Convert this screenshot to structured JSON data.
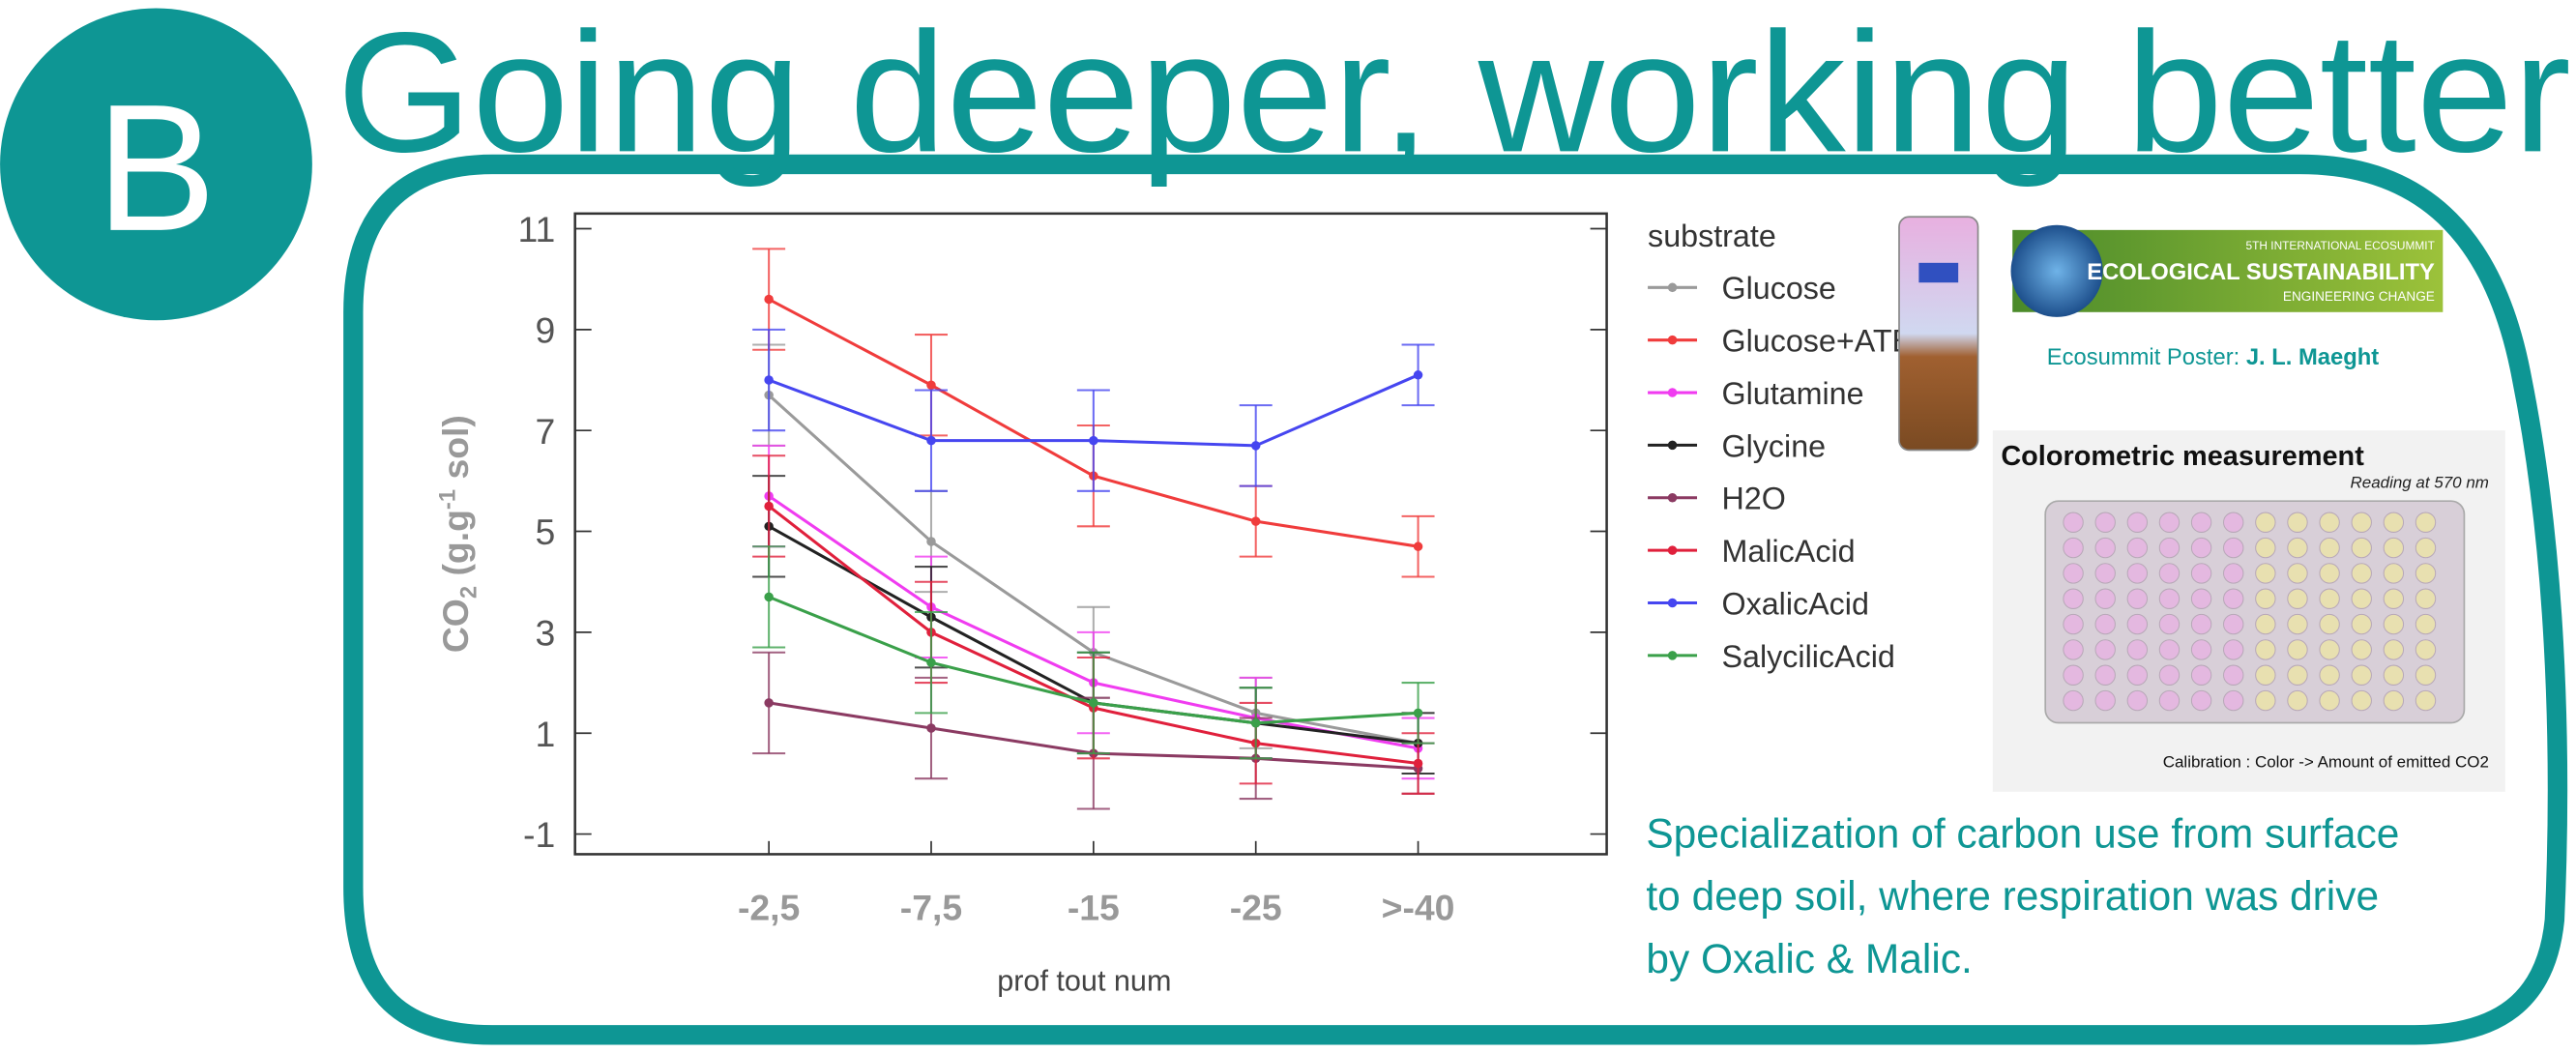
{
  "badge": "B",
  "title": "Going deeper, working better",
  "chart_data": {
    "type": "line",
    "categories": [
      "-2,5",
      "-7,5",
      "-15",
      "-25",
      ">-40"
    ],
    "xlabel": "prof tout num",
    "ylabel": {
      "main": "CO",
      "sub": "2",
      "mid": " (g.g",
      "sup": "-1",
      "end": " sol)"
    },
    "legend_title": "substrate",
    "ylim": [
      -1.4,
      11.3
    ],
    "yticks": [
      -1,
      1,
      3,
      5,
      7,
      9,
      11
    ],
    "series": [
      {
        "name": "Glucose",
        "color": "#9a9a9a",
        "values": [
          7.7,
          4.8,
          2.6,
          1.4,
          0.8
        ],
        "errors": [
          1.0,
          1.0,
          0.9,
          0.7,
          0.6
        ]
      },
      {
        "name": "Glucose+ATB",
        "color": "#f03c3c",
        "values": [
          9.6,
          7.9,
          6.1,
          5.2,
          4.7
        ],
        "errors": [
          1.0,
          1.0,
          1.0,
          0.7,
          0.6
        ]
      },
      {
        "name": "Glutamine",
        "color": "#f03cf0",
        "values": [
          5.7,
          3.5,
          2.0,
          1.3,
          0.7
        ],
        "errors": [
          1.0,
          1.0,
          1.0,
          0.8,
          0.6
        ]
      },
      {
        "name": "Glycine",
        "color": "#222222",
        "values": [
          5.1,
          3.3,
          1.6,
          1.2,
          0.8
        ],
        "errors": [
          1.0,
          1.0,
          1.0,
          0.7,
          0.6
        ]
      },
      {
        "name": "H2O",
        "color": "#8b3a62",
        "values": [
          1.6,
          1.1,
          0.6,
          0.5,
          0.3
        ],
        "errors": [
          1.0,
          1.0,
          1.1,
          0.8,
          0.5
        ]
      },
      {
        "name": "MalicAcid",
        "color": "#e0203c",
        "values": [
          5.5,
          3.0,
          1.5,
          0.8,
          0.4
        ],
        "errors": [
          1.0,
          1.0,
          1.0,
          0.8,
          0.6
        ]
      },
      {
        "name": "OxalicAcid",
        "color": "#4646f0",
        "values": [
          8.0,
          6.8,
          6.8,
          6.7,
          8.1
        ],
        "errors": [
          1.0,
          1.0,
          1.0,
          0.8,
          0.6
        ]
      },
      {
        "name": "SalycilicAcid",
        "color": "#3aa04a",
        "values": [
          3.7,
          2.4,
          1.6,
          1.2,
          1.4
        ],
        "errors": [
          1.0,
          1.0,
          1.0,
          0.7,
          0.6
        ]
      }
    ]
  },
  "logo": {
    "edition": "5TH INTERNATIONAL ECOSUMMIT",
    "name": "ECOLOGICAL SUSTAINABILITY",
    "tagline": "ENGINEERING CHANGE"
  },
  "poster_credit": {
    "label": "Ecosummit Poster: ",
    "author": "J. L. Maeght"
  },
  "photo": {
    "title": "Colorometric measurement",
    "subtitle": "Reading at 570 nm",
    "caption": "Calibration : Color -> Amount of emitted CO2"
  },
  "summary": [
    "Specialization of carbon use from surface",
    "to deep soil, where respiration was drive",
    "by Oxalic & Malic."
  ]
}
